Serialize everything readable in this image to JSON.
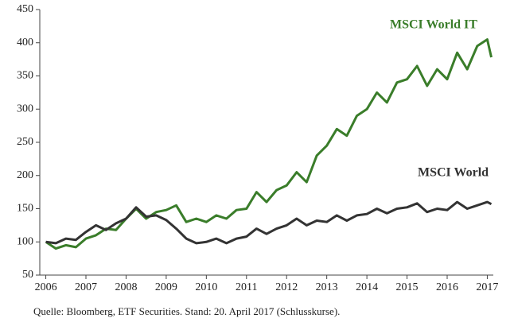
{
  "chart_data": {
    "type": "line",
    "x": [
      2006,
      2006.25,
      2006.5,
      2006.75,
      2007,
      2007.25,
      2007.5,
      2007.75,
      2008,
      2008.25,
      2008.5,
      2008.75,
      2009,
      2009.25,
      2009.5,
      2009.75,
      2010,
      2010.25,
      2010.5,
      2010.75,
      2011,
      2011.25,
      2011.5,
      2011.75,
      2012,
      2012.25,
      2012.5,
      2012.75,
      2013,
      2013.25,
      2013.5,
      2013.75,
      2014,
      2014.25,
      2014.5,
      2014.75,
      2015,
      2015.25,
      2015.5,
      2015.75,
      2016,
      2016.25,
      2016.5,
      2016.75,
      2017,
      2017.1
    ],
    "series": [
      {
        "name": "MSCI World IT",
        "color": "#3a7d2a",
        "values": [
          100,
          90,
          95,
          92,
          105,
          110,
          120,
          118,
          135,
          150,
          135,
          145,
          148,
          155,
          130,
          135,
          130,
          140,
          135,
          148,
          150,
          175,
          160,
          178,
          185,
          205,
          190,
          230,
          245,
          270,
          260,
          290,
          300,
          325,
          310,
          340,
          345,
          365,
          335,
          360,
          345,
          385,
          360,
          395,
          405,
          378
        ]
      },
      {
        "name": "MSCI World",
        "color": "#333333",
        "values": [
          100,
          98,
          105,
          103,
          115,
          125,
          118,
          128,
          135,
          152,
          138,
          140,
          133,
          120,
          105,
          98,
          100,
          105,
          98,
          105,
          108,
          120,
          112,
          120,
          125,
          135,
          125,
          132,
          130,
          140,
          132,
          140,
          142,
          150,
          143,
          150,
          152,
          158,
          145,
          150,
          148,
          160,
          150,
          155,
          160,
          157
        ]
      }
    ],
    "xlim": [
      2005.85,
      2017.15
    ],
    "xticks": [
      2006,
      2007,
      2008,
      2009,
      2010,
      2011,
      2012,
      2013,
      2014,
      2015,
      2016,
      2017
    ],
    "ylim": [
      50,
      450
    ],
    "yticks": [
      50,
      100,
      150,
      200,
      250,
      300,
      350,
      400,
      450
    ],
    "source": "Quelle: Bloomberg, ETF Securities. Stand: 20. April 2017 (Schlusskurse)."
  }
}
